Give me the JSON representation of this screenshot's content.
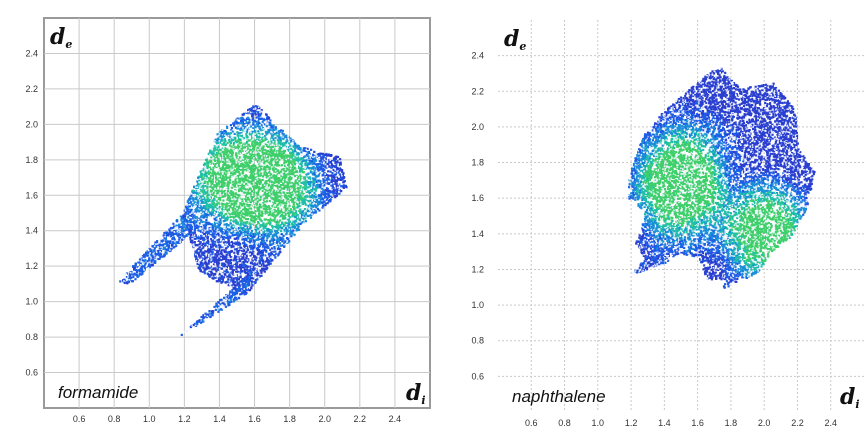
{
  "chart_data": [
    {
      "type": "heatmap",
      "compound": "formamide",
      "xaxis_symbol": "d",
      "xaxis_subscript": "i",
      "yaxis_symbol": "d",
      "yaxis_subscript": "e",
      "x_ticks": [
        "0.6",
        "0.8",
        "1.0",
        "1.2",
        "1.4",
        "1.6",
        "1.8",
        "2.0",
        "2.2",
        "2.4"
      ],
      "y_ticks": [
        "0.6",
        "0.8",
        "1.0",
        "1.2",
        "1.4",
        "1.6",
        "1.8",
        "2.0",
        "2.2",
        "2.4"
      ],
      "xlim": [
        0.4,
        2.6
      ],
      "ylim": [
        0.4,
        2.6
      ],
      "grid": true,
      "regions": [
        {
          "name": "main-body",
          "points": [
            [
              1.28,
              1.18
            ],
            [
              1.18,
              1.5
            ],
            [
              1.38,
              1.95
            ],
            [
              1.6,
              2.12
            ],
            [
              1.85,
              1.88
            ],
            [
              2.08,
              1.82
            ],
            [
              2.12,
              1.65
            ],
            [
              1.88,
              1.45
            ],
            [
              1.55,
              1.05
            ],
            [
              1.38,
              1.12
            ]
          ],
          "intensity": 0.35
        },
        {
          "name": "upper-spike",
          "points": [
            [
              0.82,
              1.12
            ],
            [
              1.18,
              1.5
            ],
            [
              1.22,
              1.38
            ],
            [
              0.88,
              1.1
            ]
          ],
          "intensity": 0.7
        },
        {
          "name": "lower-spike",
          "points": [
            [
              1.12,
              0.78
            ],
            [
              1.55,
              1.05
            ],
            [
              1.58,
              1.18
            ],
            [
              1.18,
              0.82
            ]
          ],
          "intensity": 0.7
        }
      ],
      "hotspots": [
        [
          1.55,
          1.78
        ],
        [
          1.68,
          1.7
        ],
        [
          1.72,
          1.58
        ],
        [
          1.4,
          1.65
        ]
      ]
    },
    {
      "type": "heatmap",
      "compound": "naphthalene",
      "xaxis_symbol": "d",
      "xaxis_subscript": "i",
      "yaxis_symbol": "d",
      "yaxis_subscript": "e",
      "x_ticks": [
        "0.6",
        "0.8",
        "1.0",
        "1.2",
        "1.4",
        "1.6",
        "1.8",
        "2.0",
        "2.2",
        "2.4"
      ],
      "y_ticks": [
        "0.6",
        "0.8",
        "1.0",
        "1.2",
        "1.4",
        "1.6",
        "1.8",
        "2.0",
        "2.2",
        "2.4"
      ],
      "xlim": [
        0.4,
        2.6
      ],
      "ylim": [
        0.4,
        2.6
      ],
      "grid": true,
      "regions": [
        {
          "name": "main-body",
          "points": [
            [
              1.2,
              1.78
            ],
            [
              1.25,
              1.92
            ],
            [
              1.38,
              2.08
            ],
            [
              1.55,
              2.22
            ],
            [
              1.72,
              2.35
            ],
            [
              1.85,
              2.22
            ],
            [
              2.05,
              2.25
            ],
            [
              2.18,
              2.1
            ],
            [
              2.2,
              1.88
            ],
            [
              2.3,
              1.75
            ],
            [
              2.25,
              1.55
            ],
            [
              2.15,
              1.38
            ],
            [
              2.0,
              1.28
            ],
            [
              1.85,
              1.28
            ],
            [
              1.8,
              1.15
            ],
            [
              1.65,
              1.15
            ],
            [
              1.6,
              1.28
            ],
            [
              1.42,
              1.28
            ],
            [
              1.3,
              1.22
            ],
            [
              1.22,
              1.35
            ],
            [
              1.28,
              1.5
            ],
            [
              1.2,
              1.62
            ]
          ],
          "intensity": 0.25
        },
        {
          "name": "left-wing",
          "points": [
            [
              1.18,
              1.72
            ],
            [
              1.28,
              1.98
            ],
            [
              1.32,
              1.62
            ],
            [
              1.18,
              1.6
            ]
          ],
          "intensity": 0.45
        },
        {
          "name": "lower-left-foot",
          "points": [
            [
              1.2,
              1.18
            ],
            [
              1.35,
              1.35
            ],
            [
              1.42,
              1.25
            ],
            [
              1.28,
              1.2
            ]
          ],
          "intensity": 0.45
        },
        {
          "name": "lower-right-foot",
          "points": [
            [
              1.75,
              1.1
            ],
            [
              1.95,
              1.18
            ],
            [
              2.02,
              1.28
            ],
            [
              1.78,
              1.28
            ]
          ],
          "intensity": 0.45
        }
      ],
      "hotspots": [
        [
          1.45,
          1.7
        ],
        [
          1.55,
          1.82
        ],
        [
          1.95,
          1.45
        ],
        [
          2.05,
          1.42
        ],
        [
          1.5,
          1.55
        ]
      ]
    }
  ]
}
